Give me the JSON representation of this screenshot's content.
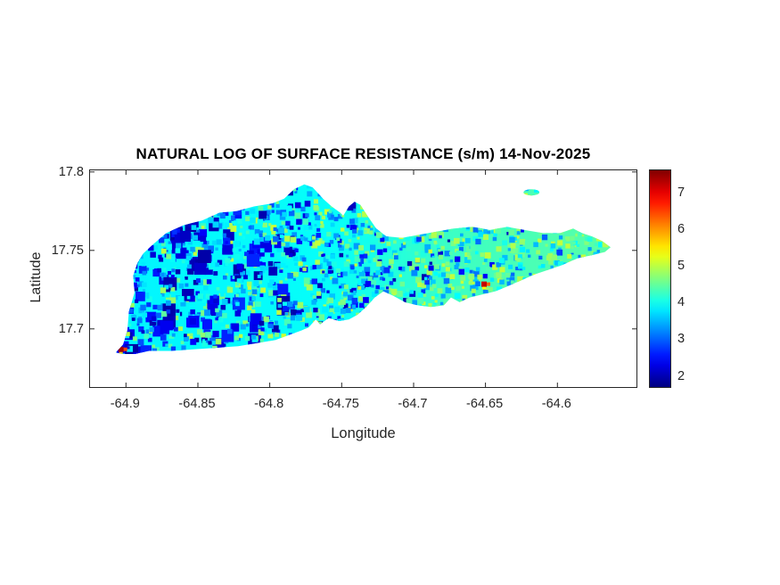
{
  "figure": {
    "title": "NATURAL LOG OF SURFACE RESISTANCE (s/m) 14-Nov-2025",
    "xlabel": "Longitude",
    "ylabel": "Latitude",
    "background": "#ffffff",
    "axis_color": "#262626"
  },
  "chart_data": {
    "type": "heatmap",
    "title": "NATURAL LOG OF SURFACE RESISTANCE (s/m) 14-Nov-2025",
    "xlabel": "Longitude",
    "ylabel": "Latitude",
    "quantity": "natural log of surface resistance (s/m)",
    "date": "14-Nov-2025",
    "region": "St. Croix island with Buck Island to the northeast",
    "xlim": [
      -64.925,
      -64.545
    ],
    "ylim": [
      17.663,
      17.801
    ],
    "x_ticks": [
      {
        "value": -64.9,
        "label": "-64.9"
      },
      {
        "value": -64.85,
        "label": "-64.85"
      },
      {
        "value": -64.8,
        "label": "-64.8"
      },
      {
        "value": -64.75,
        "label": "-64.75"
      },
      {
        "value": -64.7,
        "label": "-64.7"
      },
      {
        "value": -64.65,
        "label": "-64.65"
      },
      {
        "value": -64.6,
        "label": "-64.6"
      }
    ],
    "y_ticks": [
      {
        "value": 17.8,
        "label": "17.8"
      },
      {
        "value": 17.75,
        "label": "17.75"
      },
      {
        "value": 17.7,
        "label": "17.7"
      }
    ],
    "colormap": "jet",
    "colorbar": {
      "position": "right",
      "range": [
        1.7,
        7.6
      ],
      "ticks": [
        {
          "value": 7,
          "label": "7"
        },
        {
          "value": 6,
          "label": "6"
        },
        {
          "value": 5,
          "label": "5"
        },
        {
          "value": 4,
          "label": "4"
        },
        {
          "value": 3,
          "label": "3"
        },
        {
          "value": 2,
          "label": "2"
        }
      ]
    },
    "value_pattern": {
      "west": "ln(R) mostly 2-4: cyan background with dense dark-blue (about 2) patches, heaviest in the northwest",
      "east": "ln(R) mostly 3.5-5: cyan-green background with green and yellow-green speckle",
      "hotspots": "isolated ln(R) about 7-7.5 (red/dark-red) pixels at the southwest tip and on the mid-south coast; yellow (about 5.5) patch at the south-central lagoon notch"
    },
    "island_outline": [
      [
        -64.907,
        17.685
      ],
      [
        -64.902,
        17.69
      ],
      [
        -64.899,
        17.699
      ],
      [
        -64.898,
        17.711
      ],
      [
        -64.894,
        17.723
      ],
      [
        -64.895,
        17.734
      ],
      [
        -64.892,
        17.742
      ],
      [
        -64.888,
        17.748
      ],
      [
        -64.881,
        17.754
      ],
      [
        -64.872,
        17.761
      ],
      [
        -64.86,
        17.766
      ],
      [
        -64.847,
        17.769
      ],
      [
        -64.835,
        17.774
      ],
      [
        -64.823,
        17.775
      ],
      [
        -64.811,
        17.778
      ],
      [
        -64.798,
        17.78
      ],
      [
        -64.79,
        17.783
      ],
      [
        -64.783,
        17.789
      ],
      [
        -64.776,
        17.792
      ],
      [
        -64.77,
        17.79
      ],
      [
        -64.763,
        17.783
      ],
      [
        -64.757,
        17.778
      ],
      [
        -64.751,
        17.774
      ],
      [
        -64.749,
        17.772
      ],
      [
        -64.745,
        17.778
      ],
      [
        -64.741,
        17.781
      ],
      [
        -64.737,
        17.779
      ],
      [
        -64.732,
        17.772
      ],
      [
        -64.726,
        17.764
      ],
      [
        -64.719,
        17.759
      ],
      [
        -64.708,
        17.758
      ],
      [
        -64.696,
        17.76
      ],
      [
        -64.684,
        17.762
      ],
      [
        -64.672,
        17.764
      ],
      [
        -64.659,
        17.765
      ],
      [
        -64.647,
        17.763
      ],
      [
        -64.635,
        17.765
      ],
      [
        -64.623,
        17.763
      ],
      [
        -64.61,
        17.761
      ],
      [
        -64.598,
        17.761
      ],
      [
        -64.589,
        17.764
      ],
      [
        -64.583,
        17.761
      ],
      [
        -64.576,
        17.759
      ],
      [
        -64.569,
        17.756
      ],
      [
        -64.563,
        17.752
      ],
      [
        -64.567,
        17.749
      ],
      [
        -64.576,
        17.747
      ],
      [
        -64.586,
        17.745
      ],
      [
        -64.596,
        17.741
      ],
      [
        -64.605,
        17.738
      ],
      [
        -64.615,
        17.735
      ],
      [
        -64.625,
        17.731
      ],
      [
        -64.635,
        17.727
      ],
      [
        -64.643,
        17.724
      ],
      [
        -64.652,
        17.722
      ],
      [
        -64.661,
        17.72
      ],
      [
        -64.668,
        17.717
      ],
      [
        -64.674,
        17.72
      ],
      [
        -64.679,
        17.715
      ],
      [
        -64.688,
        17.714
      ],
      [
        -64.697,
        17.715
      ],
      [
        -64.706,
        17.717
      ],
      [
        -64.714,
        17.721
      ],
      [
        -64.721,
        17.724
      ],
      [
        -64.727,
        17.72
      ],
      [
        -64.733,
        17.714
      ],
      [
        -64.739,
        17.709
      ],
      [
        -64.745,
        17.706
      ],
      [
        -64.752,
        17.705
      ],
      [
        -64.759,
        17.707
      ],
      [
        -64.765,
        17.703
      ],
      [
        -64.768,
        17.706
      ],
      [
        -64.773,
        17.701
      ],
      [
        -64.778,
        17.699
      ],
      [
        -64.787,
        17.696
      ],
      [
        -64.796,
        17.693
      ],
      [
        -64.809,
        17.691
      ],
      [
        -64.822,
        17.689
      ],
      [
        -64.837,
        17.688
      ],
      [
        -64.853,
        17.687
      ],
      [
        -64.869,
        17.686
      ],
      [
        -64.884,
        17.686
      ],
      [
        -64.894,
        17.684
      ],
      [
        -64.902,
        17.684
      ]
    ],
    "buck_island": {
      "center": [
        -64.618,
        17.787
      ],
      "rx": 0.0055,
      "ry": 0.002
    },
    "hotspots": [
      {
        "lon": -64.9035,
        "lat": 17.687,
        "value": 7.4,
        "label": "southwest tip"
      },
      {
        "lon": -64.651,
        "lat": 17.7285,
        "value": 7.2,
        "label": "mid south coast"
      },
      {
        "lon": -64.768,
        "lat": 17.7035,
        "value": 5.5,
        "label": "lagoon notch"
      }
    ],
    "base_gradient": [
      {
        "offset": "0%",
        "value": 3.85
      },
      {
        "offset": "45%",
        "value": 3.95
      },
      {
        "offset": "65%",
        "value": 4.25
      },
      {
        "offset": "100%",
        "value": 4.45
      }
    ],
    "texture": {
      "seed": 42,
      "count": 2800
    }
  }
}
